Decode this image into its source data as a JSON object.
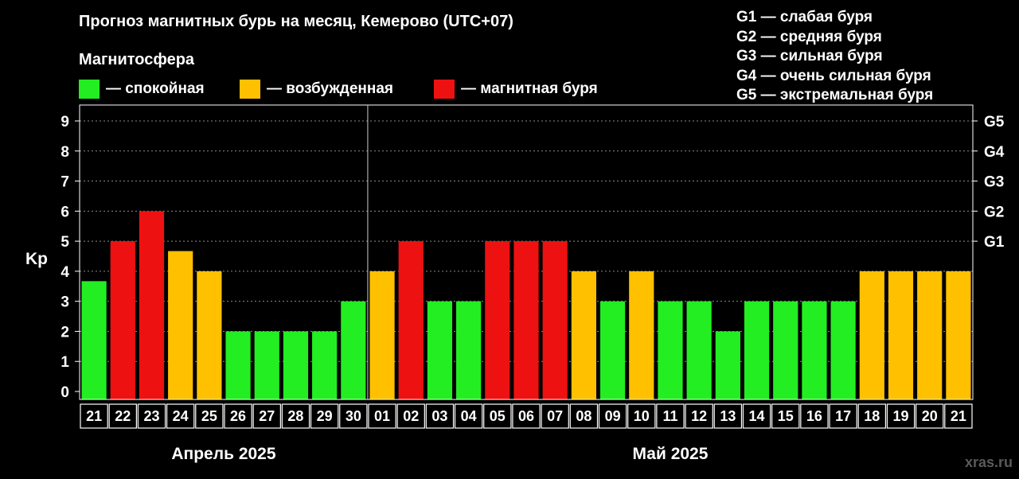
{
  "title": "Прогноз магнитных бурь на месяц, Кемерово (UTC+07)",
  "legend": {
    "heading": "Магнитосфера",
    "items": [
      {
        "label": "— спокойная",
        "color": "#22ee22"
      },
      {
        "label": "— возбужденная",
        "color": "#ffc000"
      },
      {
        "label": "— магнитная буря",
        "color": "#ee1111"
      }
    ]
  },
  "storm_scale": [
    "G1 — слабая буря",
    "G2 — средняя буря",
    "G3 — сильная буря",
    "G4 — очень сильная буря",
    "G5 — экстремальная буря"
  ],
  "watermark": "xras.ru",
  "chart_data": {
    "type": "bar",
    "ylabel": "Kp",
    "ylim": [
      0,
      9
    ],
    "yticks": [
      0,
      1,
      2,
      3,
      4,
      5,
      6,
      7,
      8,
      9
    ],
    "right_ticks": [
      {
        "value": 5,
        "label": "G1"
      },
      {
        "value": 6,
        "label": "G2"
      },
      {
        "value": 7,
        "label": "G3"
      },
      {
        "value": 8,
        "label": "G4"
      },
      {
        "value": 9,
        "label": "G5"
      }
    ],
    "grid": true,
    "months": [
      {
        "label": "Апрель 2025",
        "start": 0,
        "count": 10
      },
      {
        "label": "Май 2025",
        "start": 10,
        "count": 21
      }
    ],
    "categories": [
      "21",
      "22",
      "23",
      "24",
      "25",
      "26",
      "27",
      "28",
      "29",
      "30",
      "01",
      "02",
      "03",
      "04",
      "05",
      "06",
      "07",
      "08",
      "09",
      "10",
      "11",
      "12",
      "13",
      "14",
      "15",
      "16",
      "17",
      "18",
      "19",
      "20",
      "21"
    ],
    "values": [
      3.67,
      5,
      6,
      4.67,
      4,
      2,
      2,
      2,
      2,
      3,
      4,
      5,
      3,
      3,
      5,
      5,
      5,
      4,
      3,
      4,
      3,
      3,
      2,
      3,
      3,
      3,
      3,
      4,
      4,
      4,
      4
    ],
    "status": [
      "quiet",
      "storm",
      "storm",
      "active",
      "active",
      "quiet",
      "quiet",
      "quiet",
      "quiet",
      "quiet",
      "active",
      "storm",
      "quiet",
      "quiet",
      "storm",
      "storm",
      "storm",
      "active",
      "quiet",
      "active",
      "quiet",
      "quiet",
      "quiet",
      "quiet",
      "quiet",
      "quiet",
      "quiet",
      "active",
      "active",
      "active",
      "active"
    ],
    "colors": {
      "quiet": "#22ee22",
      "active": "#ffc000",
      "storm": "#ee1111"
    }
  }
}
